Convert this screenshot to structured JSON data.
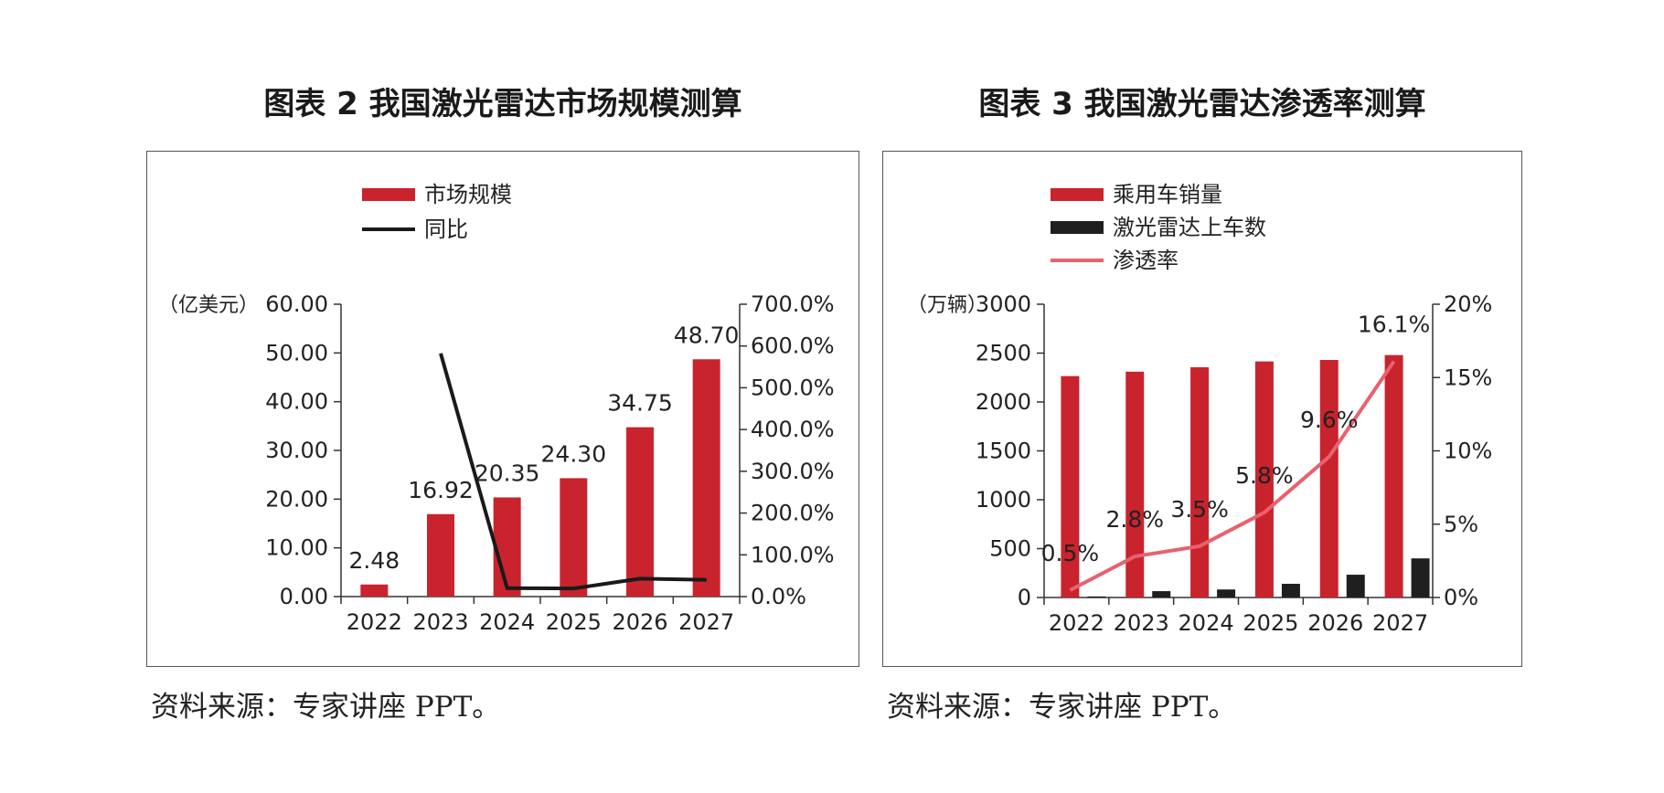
{
  "figures": [
    {
      "title": "图表 2  我国激光雷达市场规模测算",
      "source": "资料来源：专家讲座 PPT。",
      "chart_data": {
        "type": "bar",
        "categories": [
          "2022",
          "2023",
          "2024",
          "2025",
          "2026",
          "2027"
        ],
        "series": [
          {
            "name": "市场规模",
            "type": "bar",
            "axis": "left",
            "color": "#c9232d",
            "values": [
              2.48,
              16.92,
              20.35,
              24.3,
              34.75,
              48.7
            ],
            "labels": [
              "2.48",
              "16.92",
              "20.35",
              "24.30",
              "34.75",
              "48.70"
            ]
          },
          {
            "name": "同比",
            "type": "line",
            "axis": "right",
            "color": "#1a1a1a",
            "values": [
              null,
              582.3,
              20.3,
              19.4,
              43.0,
              40.1
            ]
          }
        ],
        "ylabel_left": "（亿美元）",
        "ylim_left": [
          0,
          60
        ],
        "yticks_left": [
          "0.00",
          "10.00",
          "20.00",
          "30.00",
          "40.00",
          "50.00",
          "60.00"
        ],
        "ylim_right": [
          0,
          700
        ],
        "yticks_right": [
          "0.0%",
          "100.0%",
          "200.0%",
          "300.0%",
          "400.0%",
          "500.0%",
          "600.0%",
          "700.0%"
        ],
        "legend_position": "top-left"
      }
    },
    {
      "title": "图表 3  我国激光雷达渗透率测算",
      "source": "资料来源：专家讲座 PPT。",
      "chart_data": {
        "type": "bar",
        "categories": [
          "2022",
          "2023",
          "2024",
          "2025",
          "2026",
          "2027"
        ],
        "series": [
          {
            "name": "乘用车销量",
            "type": "bar",
            "axis": "left",
            "color": "#c9232d",
            "values": [
              2265,
              2310,
              2355,
              2415,
              2430,
              2480
            ]
          },
          {
            "name": "激光雷达上车数",
            "type": "bar",
            "axis": "left",
            "color": "#1f1f1f",
            "values": [
              11,
              65,
              82,
              140,
              233,
              400
            ]
          },
          {
            "name": "渗透率",
            "type": "line",
            "axis": "right",
            "color": "#e8616e",
            "values": [
              0.5,
              2.8,
              3.5,
              5.8,
              9.6,
              16.1
            ],
            "labels": [
              "0.5%",
              "2.8%",
              "3.5%",
              "5.8%",
              "9.6%",
              "16.1%"
            ]
          }
        ],
        "ylabel_left": "（万辆）",
        "ylim_left": [
          0,
          3000
        ],
        "yticks_left": [
          "0",
          "500",
          "1000",
          "1500",
          "2000",
          "2500",
          "3000"
        ],
        "ylim_right": [
          0,
          20
        ],
        "yticks_right": [
          "0%",
          "5%",
          "10%",
          "15%",
          "20%"
        ],
        "legend_position": "top-left"
      }
    }
  ]
}
